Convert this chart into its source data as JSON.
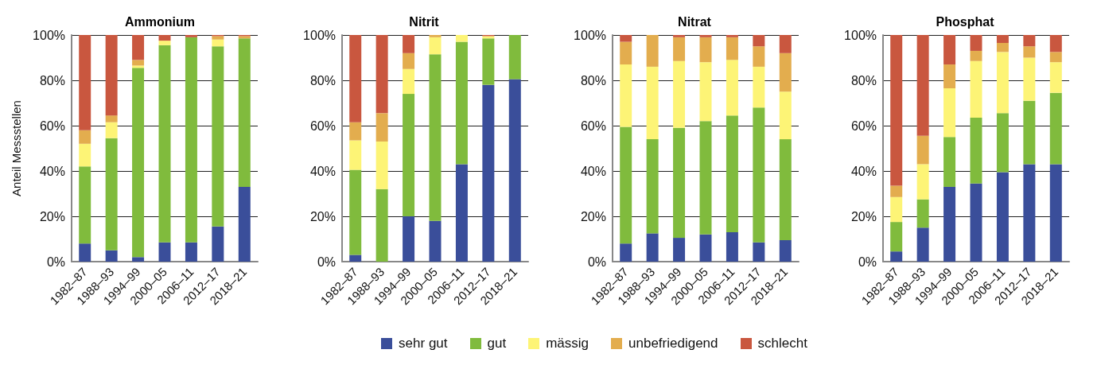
{
  "chart_data": [
    {
      "type": "bar",
      "stacked": true,
      "title": "Ammonium",
      "ylabel": "Anteil Messstellen",
      "categories": [
        "1982–87",
        "1988–93",
        "1994–99",
        "2000–05",
        "2006–11",
        "2012–17",
        "2018–21"
      ],
      "ylim": [
        0,
        100
      ],
      "yticks": [
        {
          "value": 0,
          "label": "0%"
        },
        {
          "value": 20,
          "label": "20%"
        },
        {
          "value": 40,
          "label": "40%"
        },
        {
          "value": 60,
          "label": "60%"
        },
        {
          "value": 80,
          "label": "80%"
        },
        {
          "value": 100,
          "label": "100%"
        }
      ],
      "grid": "y",
      "legend": "bottom",
      "series": [
        {
          "name": "sehr gut",
          "color": "#3a4e9a",
          "values": [
            8,
            5,
            2,
            8.5,
            8.5,
            15.5,
            33
          ]
        },
        {
          "name": "gut",
          "color": "#80bb3d",
          "values": [
            34,
            49.5,
            83.5,
            87,
            90.5,
            79.5,
            65.5
          ]
        },
        {
          "name": "mässig",
          "color": "#fdf476",
          "values": [
            10,
            7,
            1,
            2,
            0,
            3,
            0
          ]
        },
        {
          "name": "unbefriedigend",
          "color": "#e3ad4e",
          "values": [
            6,
            3,
            2.5,
            0,
            0,
            1.5,
            1
          ]
        },
        {
          "name": "schlecht",
          "color": "#c9573f",
          "values": [
            42,
            35.5,
            11,
            2.5,
            1,
            0.5,
            0.5
          ]
        }
      ]
    },
    {
      "type": "bar",
      "stacked": true,
      "title": "Nitrit",
      "categories": [
        "1982–87",
        "1988–93",
        "1994–99",
        "2000–05",
        "2006–11",
        "2012–17",
        "2018–21"
      ],
      "ylim": [
        0,
        100
      ],
      "yticks": [
        {
          "value": 0,
          "label": "0%"
        },
        {
          "value": 20,
          "label": "20%"
        },
        {
          "value": 40,
          "label": "40%"
        },
        {
          "value": 60,
          "label": "60%"
        },
        {
          "value": 80,
          "label": "80%"
        },
        {
          "value": 100,
          "label": "100%"
        }
      ],
      "grid": "y",
      "series": [
        {
          "color": "#3a4e9a",
          "values": [
            3,
            0,
            20,
            18,
            43,
            78,
            80.5
          ]
        },
        {
          "color": "#80bb3d",
          "values": [
            37.5,
            32,
            54,
            73.5,
            54,
            20.5,
            19.5
          ]
        },
        {
          "color": "#fdf476",
          "values": [
            13,
            21,
            11,
            7.5,
            3,
            1,
            0
          ]
        },
        {
          "color": "#e3ad4e",
          "values": [
            8,
            12.5,
            7,
            1,
            0,
            0,
            0
          ]
        },
        {
          "color": "#c9573f",
          "values": [
            38.5,
            34.5,
            8,
            0,
            0,
            0.5,
            0
          ]
        }
      ]
    },
    {
      "type": "bar",
      "stacked": true,
      "title": "Nitrat",
      "categories": [
        "1982–87",
        "1988–93",
        "1994–99",
        "2000–05",
        "2006–11",
        "2012–17",
        "2018–21"
      ],
      "ylim": [
        0,
        100
      ],
      "yticks": [
        {
          "value": 0,
          "label": "0%"
        },
        {
          "value": 20,
          "label": "20%"
        },
        {
          "value": 40,
          "label": "40%"
        },
        {
          "value": 60,
          "label": "60%"
        },
        {
          "value": 80,
          "label": "80%"
        },
        {
          "value": 100,
          "label": "100%"
        }
      ],
      "grid": "y",
      "series": [
        {
          "color": "#3a4e9a",
          "values": [
            8,
            12.5,
            10.5,
            12,
            13,
            8.5,
            9.5
          ]
        },
        {
          "color": "#80bb3d",
          "values": [
            51.5,
            41.5,
            48.5,
            50,
            51.5,
            59.5,
            44.5
          ]
        },
        {
          "color": "#fdf476",
          "values": [
            27.5,
            32,
            29.5,
            26,
            24.5,
            18,
            21
          ]
        },
        {
          "color": "#e3ad4e",
          "values": [
            10,
            14,
            10.5,
            11,
            10,
            9,
            17
          ]
        },
        {
          "color": "#c9573f",
          "values": [
            3,
            0,
            1,
            1,
            1,
            5,
            8
          ]
        }
      ]
    },
    {
      "type": "bar",
      "stacked": true,
      "title": "Phosphat",
      "categories": [
        "1982–87",
        "1988–93",
        "1994–99",
        "2000–05",
        "2006–11",
        "2012–17",
        "2018–21"
      ],
      "ylim": [
        0,
        100
      ],
      "yticks": [
        {
          "value": 0,
          "label": "0%"
        },
        {
          "value": 20,
          "label": "20%"
        },
        {
          "value": 40,
          "label": "40%"
        },
        {
          "value": 60,
          "label": "60%"
        },
        {
          "value": 80,
          "label": "80%"
        },
        {
          "value": 100,
          "label": "100%"
        }
      ],
      "grid": "y",
      "series": [
        {
          "color": "#3a4e9a",
          "values": [
            4.5,
            15,
            33,
            34.5,
            39.5,
            43,
            43
          ]
        },
        {
          "color": "#80bb3d",
          "values": [
            13,
            12.5,
            22,
            29,
            26,
            28,
            31.5
          ]
        },
        {
          "color": "#fdf476",
          "values": [
            11,
            15.5,
            21.5,
            25,
            27,
            19,
            13.5
          ]
        },
        {
          "color": "#e3ad4e",
          "values": [
            5,
            12.5,
            10.5,
            4.5,
            4,
            5,
            4.5
          ]
        },
        {
          "color": "#c9573f",
          "values": [
            66.5,
            44.5,
            13,
            7,
            3.5,
            5,
            7.5
          ]
        }
      ]
    }
  ]
}
